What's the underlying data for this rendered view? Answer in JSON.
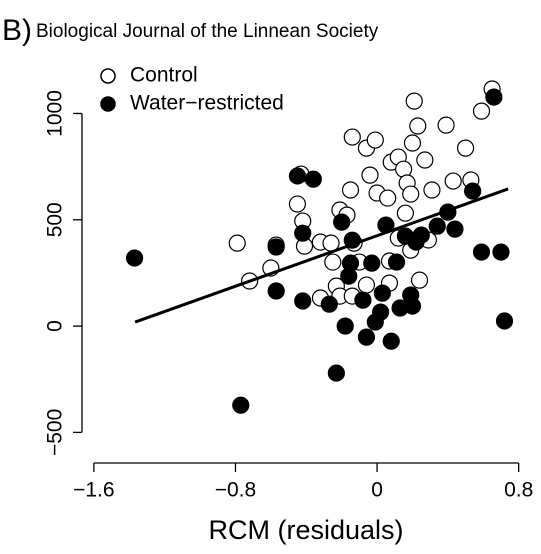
{
  "chart_data": {
    "type": "scatter",
    "panel_label": "B)",
    "title": "Biological Journal of the Linnean Society",
    "x_label": "RCM (residuals)",
    "xlim": [
      -1.667,
      0.864
    ],
    "ylim": [
      -644,
      1275
    ],
    "xticks": [
      {
        "value": -1.6,
        "label": "−1.6"
      },
      {
        "value": -0.8,
        "label": "−0.8"
      },
      0,
      0.8
    ],
    "yticks": [
      {
        "value": -500,
        "label": "−500"
      },
      0,
      500,
      1000
    ],
    "legend": "top-left",
    "series": [
      {
        "name": "Control",
        "color": "#ffffff",
        "x": [
          -0.79,
          -0.72,
          -0.6,
          -0.57,
          -0.45,
          -0.43,
          -0.42,
          -0.41,
          -0.32,
          -0.23,
          -0.21,
          -0.17,
          -0.15,
          -0.14,
          -0.1,
          -0.06,
          -0.01,
          -0.04,
          0,
          -0.06,
          0.06,
          0.08,
          0.12,
          0.15,
          0.17,
          0.19,
          0.2,
          0.21,
          0.23,
          0.27,
          0.31,
          0.16,
          0.12,
          0.24,
          0.07,
          0.07,
          0.29,
          0.39,
          0.43,
          0.5,
          0.53,
          0.59,
          0.65,
          -0.13,
          -0.25,
          -0.32,
          -0.26,
          -0.21,
          -0.14,
          0.19
        ],
        "values": [
          390,
          212,
          273,
          381,
          574,
          715,
          494,
          376,
          395,
          188,
          546,
          522,
          640,
          889,
          301,
          837,
          875,
          710,
          626,
          193,
          602,
          771,
          795,
          738,
          673,
          621,
          861,
          1058,
          941,
          781,
          640,
          531,
          414,
          216,
          202,
          306,
          405,
          945,
          682,
          837,
          687,
          1011,
          1115,
          390,
          301,
          132,
          390,
          141,
          141,
          357
        ]
      },
      {
        "name": "Water−restricted",
        "color": "#000000",
        "x": [
          -1.37,
          -0.77,
          -0.57,
          -0.57,
          -0.42,
          -0.45,
          -0.36,
          -0.42,
          -0.27,
          -0.23,
          -0.2,
          -0.18,
          -0.16,
          -0.15,
          -0.14,
          -0.08,
          -0.06,
          -0.03,
          -0.01,
          0.02,
          0.05,
          0.08,
          0.11,
          0.13,
          0.16,
          0.19,
          0.2,
          0.22,
          0.25,
          0.34,
          0.4,
          0.44,
          0.54,
          0.59,
          0.66,
          0.7,
          0.72,
          0.03
        ],
        "values": [
          320,
          -372,
          165,
          372,
          118,
          706,
          691,
          437,
          103,
          -221,
          489,
          0,
          235,
          296,
          404,
          122,
          -52,
          296,
          19,
          66,
          475,
          -71,
          301,
          85,
          423,
          146,
          94,
          395,
          428,
          470,
          536,
          456,
          635,
          348,
          1077,
          348,
          24,
          155
        ]
      }
    ],
    "trend_line": {
      "x": [
        -1.367,
        0.74
      ],
      "y": [
        19,
        645
      ]
    }
  }
}
